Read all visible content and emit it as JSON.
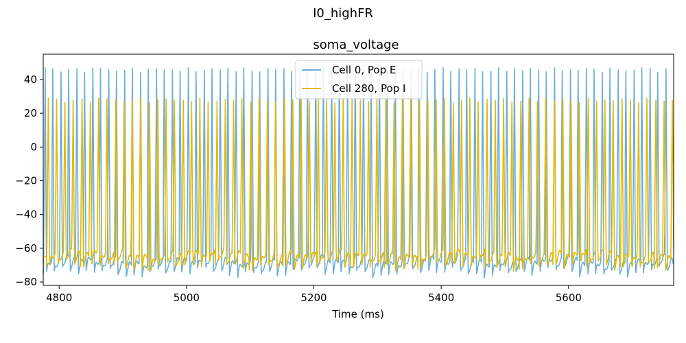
{
  "figure": {
    "suptitle": "I0_highFR"
  },
  "chart_data": {
    "type": "line",
    "title": "soma_voltage",
    "xlabel": "Time (ms)",
    "ylabel": "",
    "xlim": [
      4775,
      5765
    ],
    "ylim": [
      -82,
      55
    ],
    "xticks": [
      4800,
      5000,
      5200,
      5400,
      5600
    ],
    "yticks": [
      -80,
      -60,
      -40,
      -20,
      0,
      20,
      40
    ],
    "legend_position": "top-center",
    "grid": false,
    "series": [
      {
        "name": "Cell 0, Pop E",
        "color": "#6baed6",
        "peak": 47,
        "trough": -75,
        "spike_times": [
          4778,
          4790,
          4803,
          4815,
          4828,
          4840,
          4853,
          4865,
          4878,
          4890,
          4903,
          4915,
          4928,
          4940,
          4953,
          4965,
          4978,
          4990,
          5003,
          5015,
          5028,
          5040,
          5053,
          5065,
          5078,
          5090,
          5103,
          5115,
          5128,
          5140,
          5153,
          5165,
          5178,
          5190,
          5203,
          5215,
          5228,
          5240,
          5253,
          5265,
          5278,
          5290,
          5303,
          5315,
          5328,
          5340,
          5353,
          5365,
          5378,
          5390,
          5403,
          5415,
          5428,
          5440,
          5453,
          5465,
          5478,
          5490,
          5503,
          5515,
          5528,
          5540,
          5553,
          5565,
          5578,
          5590,
          5603,
          5615,
          5628,
          5640,
          5653,
          5665,
          5678,
          5690,
          5703,
          5715,
          5728,
          5740,
          5753
        ]
      },
      {
        "name": "Cell 280, Pop I",
        "color": "#e6b800",
        "peak": 29,
        "trough": -71,
        "spike_times": [
          4783,
          4796,
          4809,
          4822,
          4836,
          4849,
          4862,
          4875,
          4889,
          4902,
          4915,
          4928,
          4942,
          4955,
          4968,
          4981,
          4995,
          5008,
          5021,
          5034,
          5048,
          5061,
          5074,
          5087,
          5101,
          5114,
          5127,
          5140,
          5154,
          5167,
          5180,
          5193,
          5207,
          5220,
          5233,
          5246,
          5260,
          5273,
          5286,
          5299,
          5313,
          5326,
          5339,
          5352,
          5366,
          5379,
          5392,
          5405,
          5419,
          5432,
          5445,
          5458,
          5472,
          5485,
          5498,
          5511,
          5525,
          5538,
          5551,
          5564,
          5578,
          5591,
          5604,
          5617,
          5631,
          5644,
          5657,
          5670,
          5684,
          5697,
          5710,
          5723,
          5737,
          5750,
          5763
        ]
      }
    ]
  }
}
